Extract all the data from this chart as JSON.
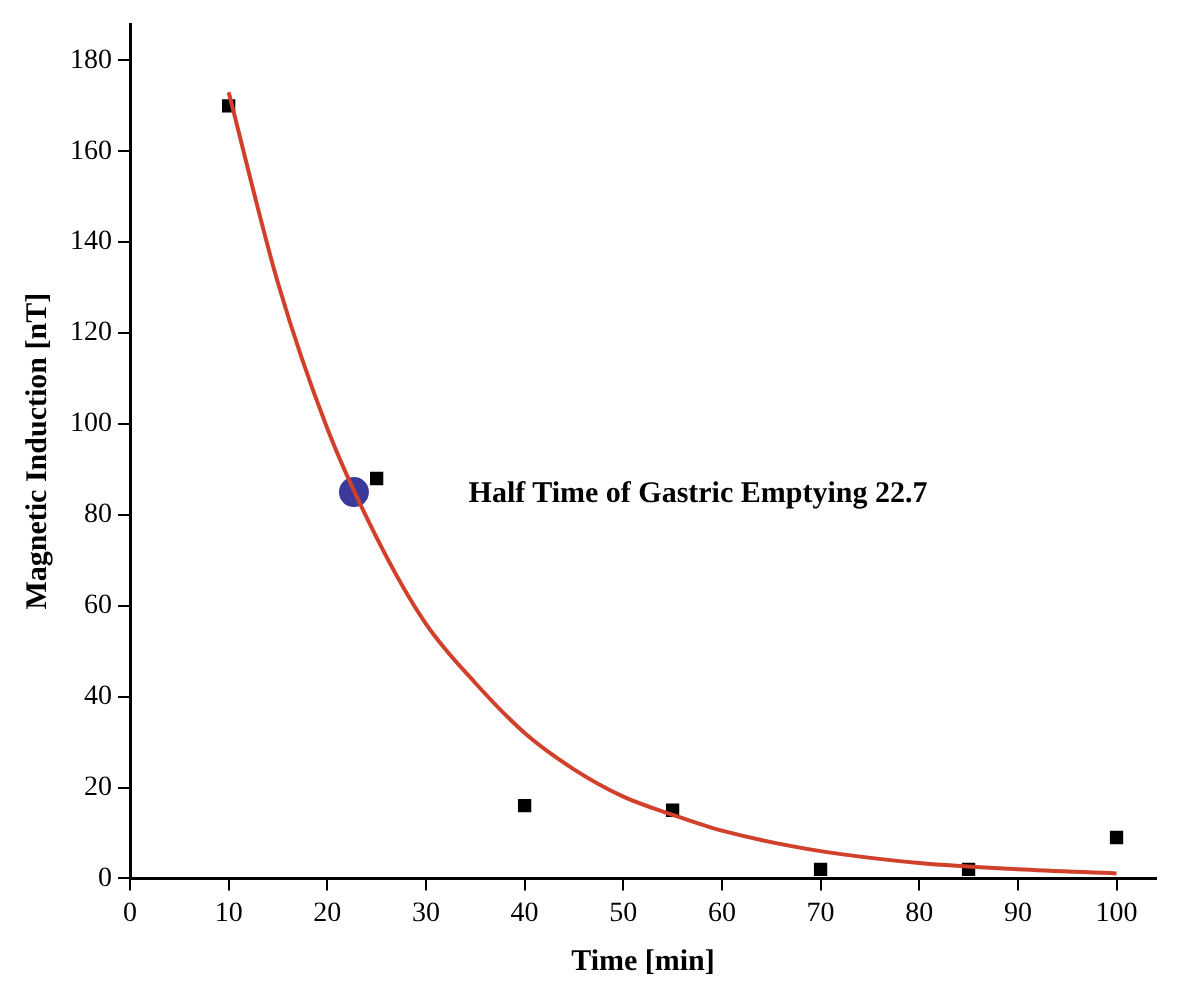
{
  "chart_data": {
    "type": "scatter",
    "xlabel": "Time [min]",
    "ylabel": "Magnetic Induction [nT]",
    "xlim": [
      0,
      104
    ],
    "xticks": [
      0,
      10,
      20,
      30,
      40,
      50,
      60,
      70,
      80,
      90,
      100
    ],
    "ylim": [
      0,
      188
    ],
    "yticks": [
      0,
      20,
      40,
      60,
      80,
      100,
      120,
      140,
      160,
      180
    ],
    "grid": false,
    "legend": false,
    "annotations": [
      "Half Time of Gastric Emptying 22.7"
    ],
    "series": [
      {
        "type": "line",
        "color": "#d0402a",
        "marker": "none",
        "line_style": "solid",
        "x": [
          10,
          15,
          20,
          25,
          30,
          35,
          40,
          45,
          50,
          55,
          60,
          70,
          80,
          90,
          100
        ],
        "values": [
          173,
          131,
          99,
          75,
          56,
          43,
          32,
          24,
          18,
          14,
          10.5,
          6,
          3.4,
          2,
          1.1
        ]
      },
      {
        "type": "scatter",
        "color": "#000000",
        "marker": "square",
        "x": [
          10,
          25,
          40,
          55,
          70,
          85,
          100
        ],
        "values": [
          170,
          88,
          16,
          15,
          2,
          2,
          9
        ]
      },
      {
        "type": "scatter",
        "color": "#3a3a9a",
        "marker": "circle",
        "x": [
          22.7
        ],
        "values": [
          85
        ]
      }
    ]
  }
}
